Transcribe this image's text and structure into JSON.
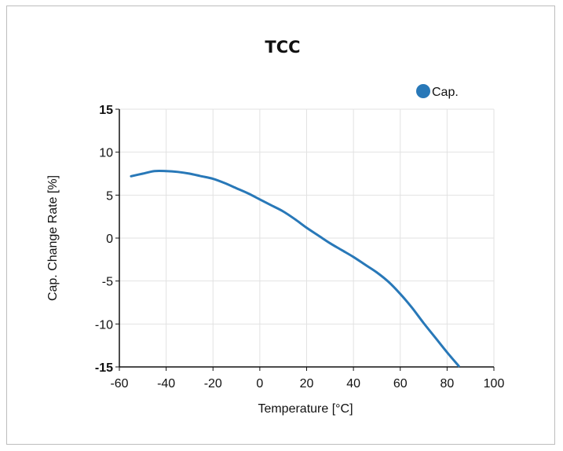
{
  "chart_data": {
    "type": "line",
    "title": "TCC",
    "xlabel": "Temperature [°C]",
    "ylabel": "Cap. Change Rate [%]",
    "xlim": [
      -60,
      100
    ],
    "ylim": [
      -15,
      15
    ],
    "x_ticks": [
      "-60",
      "-40",
      "-20",
      "0",
      "20",
      "40",
      "60",
      "80",
      "100"
    ],
    "y_ticks": [
      "15",
      "10",
      "5",
      "0",
      "-5",
      "-10",
      "-15"
    ],
    "grid": true,
    "legend_position": "top-right",
    "colors": {
      "series": "#2878b8",
      "grid": "#e2e2e2",
      "axis": "#111111"
    },
    "series": [
      {
        "name": "Cap.",
        "x": [
          -55,
          -50,
          -45,
          -40,
          -35,
          -30,
          -25,
          -20,
          -15,
          -10,
          -5,
          0,
          5,
          10,
          15,
          20,
          25,
          30,
          35,
          40,
          45,
          50,
          55,
          60,
          65,
          70,
          75,
          80,
          85
        ],
        "y": [
          7.2,
          7.5,
          7.8,
          7.8,
          7.7,
          7.5,
          7.2,
          6.9,
          6.4,
          5.8,
          5.2,
          4.5,
          3.8,
          3.1,
          2.2,
          1.2,
          0.3,
          -0.6,
          -1.4,
          -2.2,
          -3.1,
          -4.0,
          -5.1,
          -6.5,
          -8.1,
          -9.9,
          -11.6,
          -13.3,
          -14.9
        ]
      }
    ]
  }
}
